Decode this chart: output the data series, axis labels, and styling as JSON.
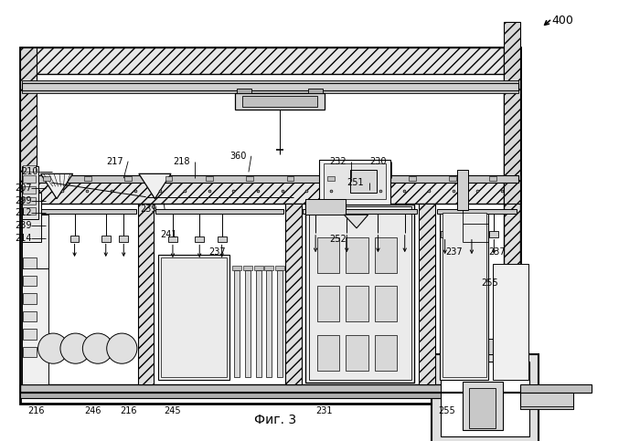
{
  "fig_label": "Фиг. 3",
  "background_color": "#ffffff",
  "line_color": "#000000",
  "fig_w": 7.0,
  "fig_h": 4.83,
  "dpi": 100
}
